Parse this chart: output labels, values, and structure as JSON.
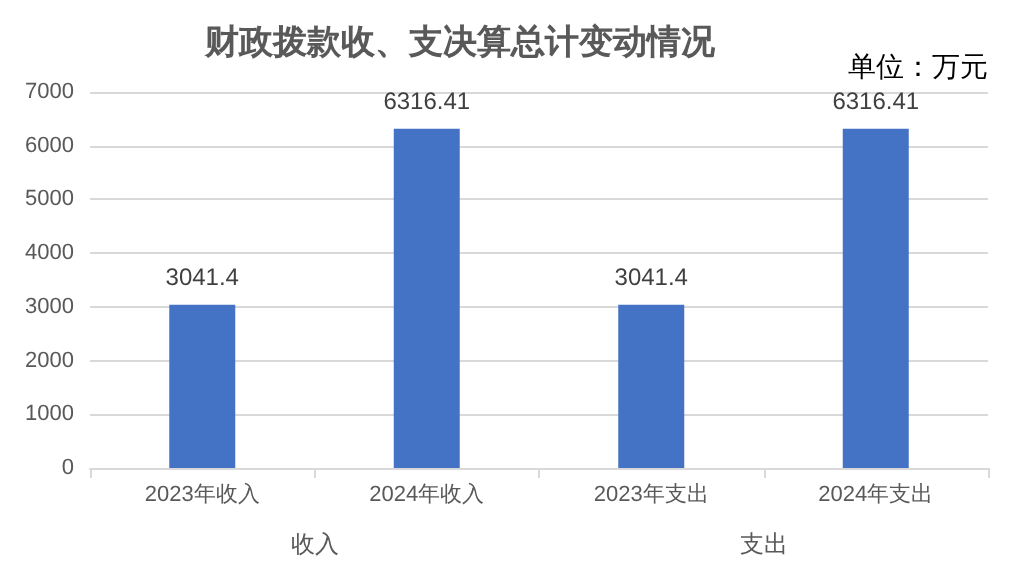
{
  "chart_data": {
    "type": "bar",
    "title": "财政拨款收、支决算总计变动情况",
    "categories": [
      "2023年收入",
      "2024年收入",
      "2023年支出",
      "2024年支出"
    ],
    "values": [
      3041.4,
      6316.41,
      3041.4,
      6316.41
    ],
    "color": "#4472c4",
    "ylim": [
      0,
      7000
    ],
    "yticks": [
      0,
      1000,
      2000,
      3000,
      4000,
      5000,
      6000,
      7000
    ],
    "grid": "y",
    "data_labels": true,
    "annotations": [
      "单位：万元",
      "收入",
      "支出"
    ]
  }
}
